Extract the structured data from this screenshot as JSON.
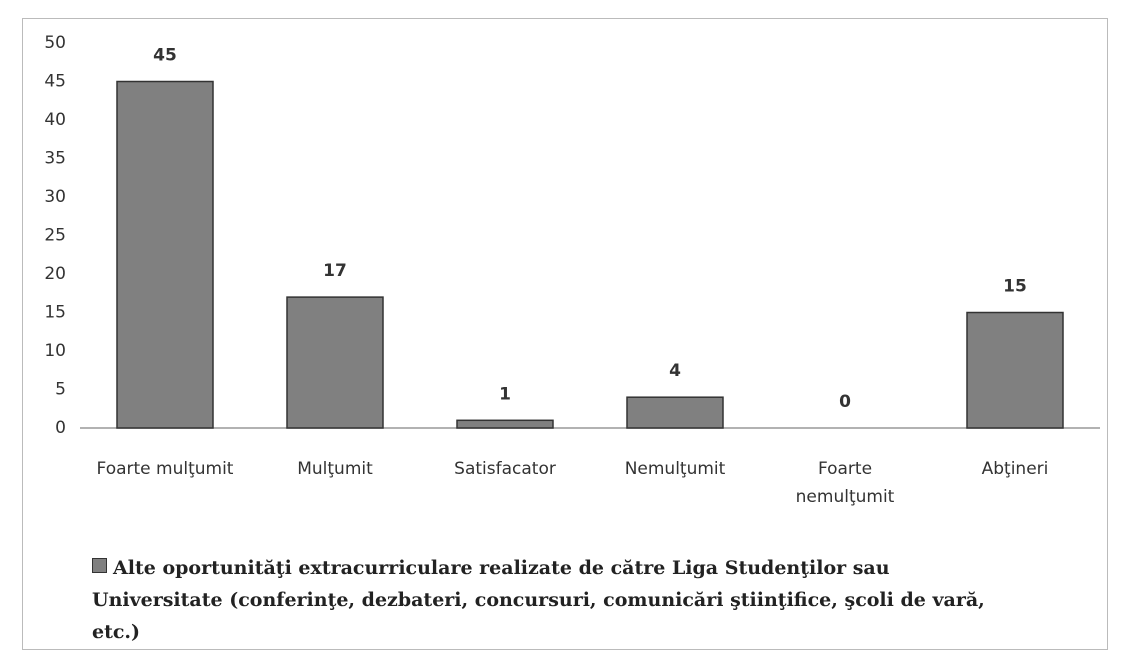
{
  "chart_data": {
    "type": "bar",
    "categories": [
      "Foarte mulţumit",
      "Mulţumit",
      "Satisfacator",
      "Nemulţumit",
      "Foarte nemulţumit",
      "Abţineri"
    ],
    "series": [
      {
        "name": "Alte oportunităţi extracurriculare realizate de către Liga Studenţilor sau Universitate (conferinţe, dezbateri, concursuri, comunicări ştiinţifice, şcoli de vară, etc.)",
        "color": "#808080",
        "values": [
          45,
          17,
          1,
          4,
          0,
          15
        ]
      }
    ],
    "ylim": [
      0,
      50
    ],
    "yticks": [
      0,
      5,
      10,
      15,
      20,
      25,
      30,
      35,
      40,
      45,
      50
    ],
    "grid": false,
    "legend": "bottom"
  }
}
